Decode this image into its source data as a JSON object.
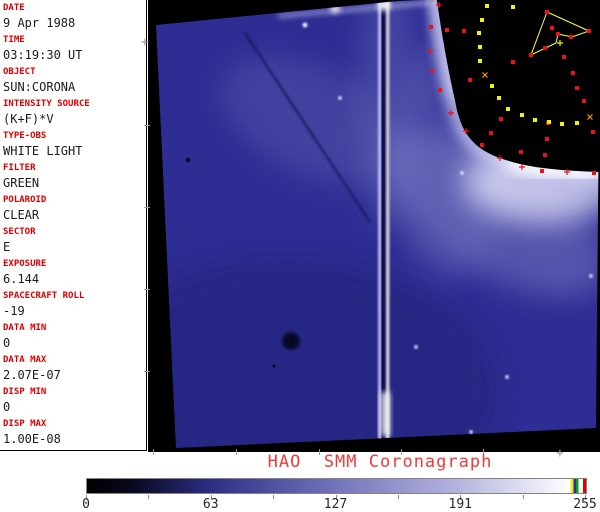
{
  "sidebar": {
    "fields": [
      {
        "label": "DATE",
        "value": "9 Apr 1988"
      },
      {
        "label": "TIME",
        "value": "03:19:30 UT"
      },
      {
        "label": "OBJECT",
        "value": "SUN:CORONA"
      },
      {
        "label": "INTENSITY SOURCE",
        "value": "(K+F)*V"
      },
      {
        "label": "TYPE-OBS",
        "value": "WHITE LIGHT"
      },
      {
        "label": "FILTER",
        "value": "GREEN"
      },
      {
        "label": "POLAROID",
        "value": "CLEAR"
      },
      {
        "label": "SECTOR",
        "value": "E"
      },
      {
        "label": "EXPOSURE",
        "value": "6.144"
      },
      {
        "label": "SPACECRAFT ROLL",
        "value": "-19"
      },
      {
        "label": "DATA MIN",
        "value": "0"
      },
      {
        "label": "DATA MAX",
        "value": "2.07E-07"
      },
      {
        "label": "DISP MIN",
        "value": "0"
      },
      {
        "label": "DISP MAX",
        "value": "1.00E-08"
      }
    ],
    "label_color": "#dd0000",
    "value_color": "#1c1c1c"
  },
  "footer": {
    "title": "HAO  SMM Coronagraph",
    "title_color": "#ee3b3b",
    "colorbar": {
      "min": 0,
      "max": 255,
      "tick_labels": [
        "0",
        "63",
        "127",
        "191",
        "255"
      ],
      "tick_positions_pct": [
        0,
        25,
        50,
        75,
        100
      ],
      "minor_tick_positions_pct": [
        12.5,
        37.5,
        62.5,
        87.5
      ],
      "end_stripe_colors": [
        "#f0f000",
        "#2828cc",
        "#00a800",
        "#e00000"
      ]
    }
  },
  "image_overlay": {
    "colors": {
      "red_marker": "#ee1111",
      "yellow_marker": "#f2f20a",
      "orange_marker": "#ff9900",
      "polygon": "#ffff44",
      "star": "#f6f6ff"
    },
    "red_squares": [
      [
        283,
        27
      ],
      [
        299,
        30
      ],
      [
        316,
        31
      ],
      [
        322,
        80
      ],
      [
        292,
        90
      ],
      [
        365,
        62
      ],
      [
        353,
        119
      ],
      [
        343,
        133
      ],
      [
        334,
        145
      ],
      [
        373,
        152
      ],
      [
        399,
        139
      ],
      [
        397,
        155
      ],
      [
        394,
        171
      ],
      [
        446,
        173
      ],
      [
        445,
        132
      ],
      [
        436,
        101
      ],
      [
        429,
        88
      ],
      [
        425,
        73
      ],
      [
        416,
        57
      ],
      [
        404,
        28
      ],
      [
        399,
        12
      ],
      [
        441,
        31
      ],
      [
        423,
        37
      ],
      [
        410,
        34
      ],
      [
        397,
        48
      ],
      [
        383,
        55
      ],
      [
        400,
        123
      ]
    ],
    "yellow_squares": [
      [
        339,
        6
      ],
      [
        365,
        7
      ],
      [
        334,
        20
      ],
      [
        331,
        33
      ],
      [
        332,
        47
      ],
      [
        332,
        61
      ],
      [
        344,
        86
      ],
      [
        351,
        98
      ],
      [
        360,
        109
      ],
      [
        374,
        115
      ],
      [
        387,
        120
      ],
      [
        401,
        122
      ],
      [
        414,
        124
      ],
      [
        429,
        123
      ]
    ],
    "red_plus": [
      [
        291,
        5
      ],
      [
        282,
        51
      ],
      [
        284,
        71
      ],
      [
        303,
        113
      ],
      [
        318,
        131
      ],
      [
        352,
        158
      ],
      [
        374,
        167
      ],
      [
        419,
        172
      ]
    ],
    "orange_x": [
      [
        337,
        75
      ],
      [
        442,
        117
      ]
    ],
    "yellow_plus": [
      [
        412,
        43
      ]
    ],
    "polygon_points": [
      [
        399,
        12
      ],
      [
        441,
        31
      ],
      [
        424,
        37
      ],
      [
        410,
        34
      ],
      [
        408,
        43
      ],
      [
        383,
        55
      ]
    ],
    "stars": [
      [
        157,
        25
      ],
      [
        192,
        98
      ],
      [
        314,
        173
      ],
      [
        268,
        347
      ],
      [
        359,
        377
      ],
      [
        443,
        276
      ],
      [
        323,
        432
      ]
    ],
    "dark_spots": [
      [
        143,
        341,
        11
      ],
      [
        40,
        160,
        3
      ],
      [
        126,
        366,
        2
      ]
    ]
  }
}
